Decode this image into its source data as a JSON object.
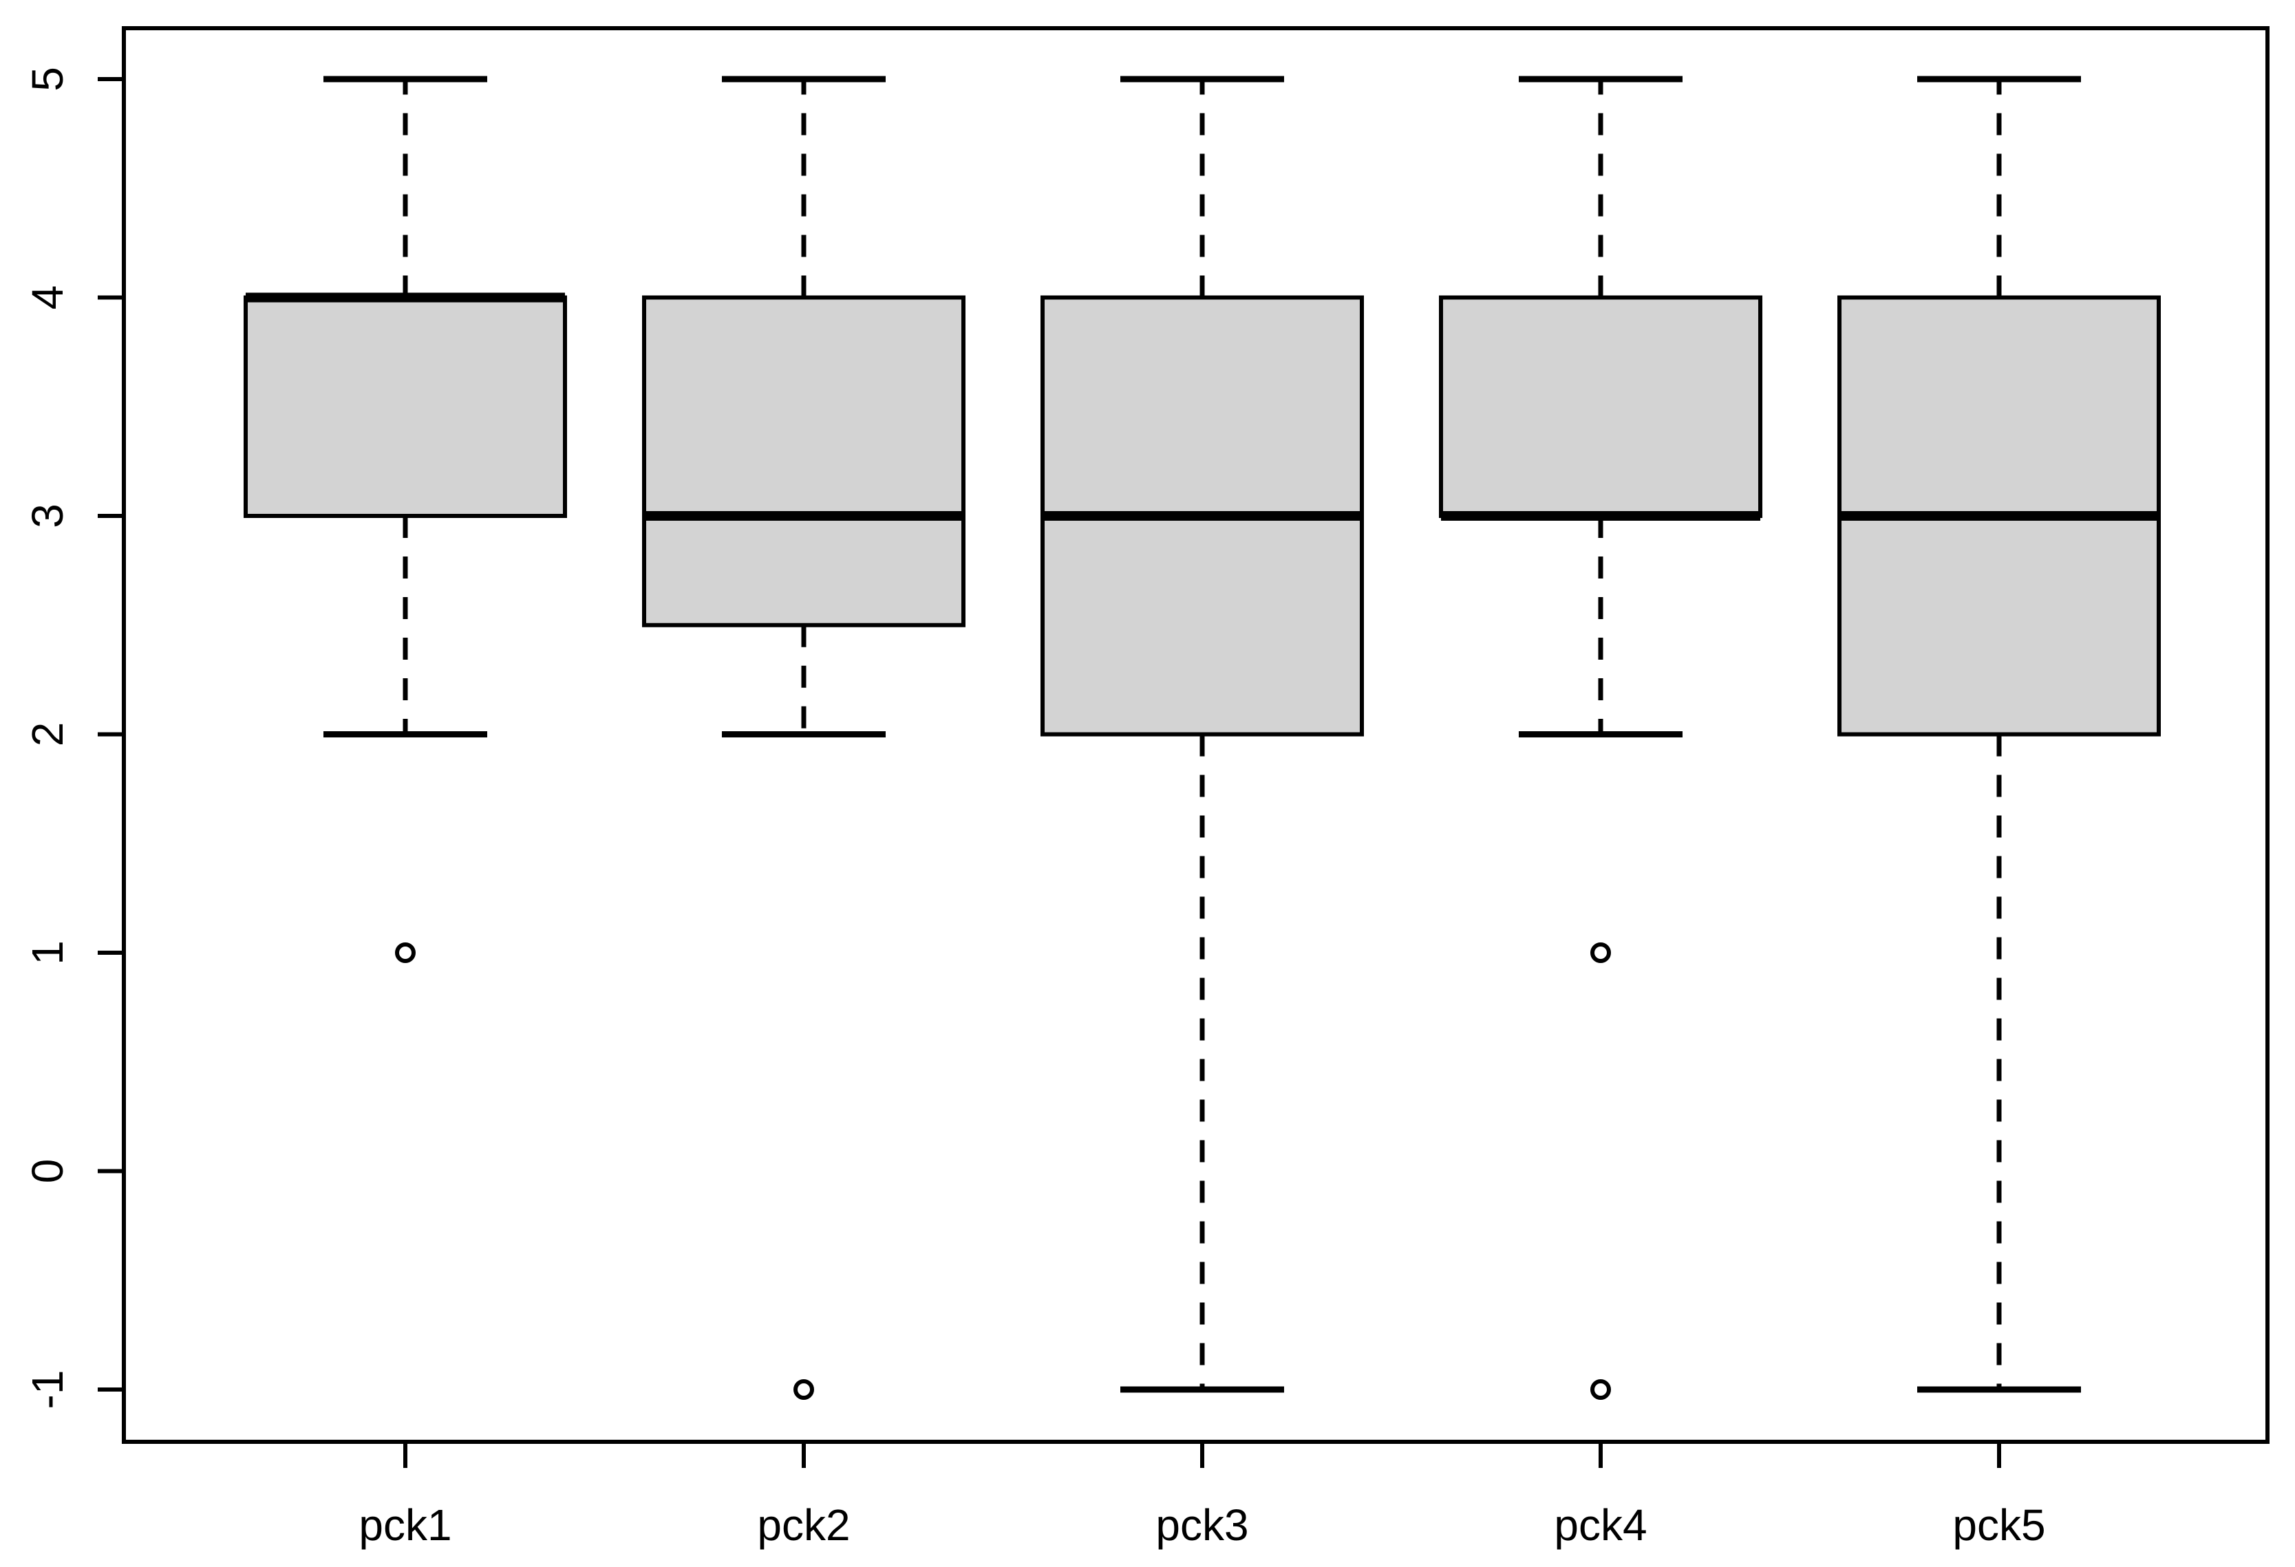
{
  "figure": {
    "background": "#ffffff"
  },
  "chart_data": {
    "type": "boxplot",
    "title": "",
    "xlabel": "",
    "ylabel": "",
    "categories": [
      "pck1",
      "pck2",
      "pck3",
      "pck4",
      "pck5"
    ],
    "y_tick_labels": [
      "5",
      "4",
      "3",
      "2",
      "1",
      "0",
      "-1"
    ],
    "y_tick_values": [
      5,
      4,
      3,
      2,
      1,
      0,
      -1
    ],
    "ylim": [
      -1.24,
      5.24
    ],
    "grid": false,
    "legend": "none",
    "box_fill": "#d3d3d3",
    "line_color": "#000000",
    "outlier_fill": "#ffffff",
    "series": [
      {
        "name": "pck1",
        "q1": 3,
        "median": 4,
        "q3": 4,
        "whisker_low": 2,
        "whisker_high": 5,
        "outliers": [
          1
        ]
      },
      {
        "name": "pck2",
        "q1": 2.5,
        "median": 3,
        "q3": 4,
        "whisker_low": 2,
        "whisker_high": 5,
        "outliers": [
          -1
        ]
      },
      {
        "name": "pck3",
        "q1": 2,
        "median": 3,
        "q3": 4,
        "whisker_low": -1,
        "whisker_high": 5,
        "outliers": []
      },
      {
        "name": "pck4",
        "q1": 3,
        "median": 3,
        "q3": 4,
        "whisker_low": 2,
        "whisker_high": 5,
        "outliers": [
          1,
          -1
        ]
      },
      {
        "name": "pck5",
        "q1": 2,
        "median": 3,
        "q3": 4,
        "whisker_low": -1,
        "whisker_high": 5,
        "outliers": []
      }
    ]
  }
}
